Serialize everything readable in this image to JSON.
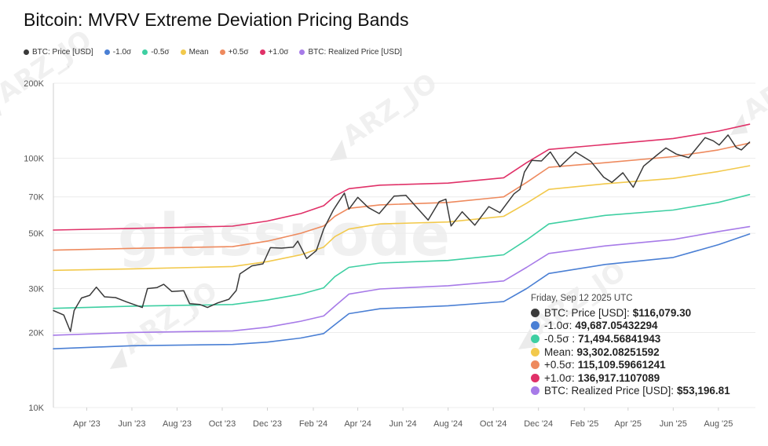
{
  "chart_data": {
    "type": "line",
    "title": "Bitcoin: MVRV Extreme Deviation Pricing Bands",
    "y_scale": "log",
    "ylim": [
      10000,
      200000
    ],
    "y_ticks": [
      {
        "value": 10000,
        "label": "10K"
      },
      {
        "value": 20000,
        "label": "20K"
      },
      {
        "value": 30000,
        "label": "30K"
      },
      {
        "value": 50000,
        "label": "50K"
      },
      {
        "value": 70000,
        "label": "70K"
      },
      {
        "value": 100000,
        "label": "100K"
      },
      {
        "value": 200000,
        "label": "200K"
      }
    ],
    "xlim": [
      "2023-02-15",
      "2025-09-20"
    ],
    "x_ticks": [
      {
        "value": "2023-04-01",
        "label": "Apr '23"
      },
      {
        "value": "2023-06-01",
        "label": "Jun '23"
      },
      {
        "value": "2023-08-01",
        "label": "Aug '23"
      },
      {
        "value": "2023-10-01",
        "label": "Oct '23"
      },
      {
        "value": "2023-12-01",
        "label": "Dec '23"
      },
      {
        "value": "2024-02-01",
        "label": "Feb '24"
      },
      {
        "value": "2024-04-01",
        "label": "Apr '24"
      },
      {
        "value": "2024-06-01",
        "label": "Jun '24"
      },
      {
        "value": "2024-08-01",
        "label": "Aug '24"
      },
      {
        "value": "2024-10-01",
        "label": "Oct '24"
      },
      {
        "value": "2024-12-01",
        "label": "Dec '24"
      },
      {
        "value": "2025-02-01",
        "label": "Feb '25"
      },
      {
        "value": "2025-04-01",
        "label": "Apr '25"
      },
      {
        "value": "2025-06-01",
        "label": "Jun '25"
      },
      {
        "value": "2025-08-01",
        "label": "Aug '25"
      }
    ],
    "grid": true,
    "legend_position": "top-left",
    "series": [
      {
        "name": "BTC: Price [USD]",
        "color": "#3a3a3a",
        "points": [
          [
            "2023-02-15",
            24500
          ],
          [
            "2023-03-01",
            23500
          ],
          [
            "2023-03-10",
            20200
          ],
          [
            "2023-03-15",
            24500
          ],
          [
            "2023-03-25",
            27500
          ],
          [
            "2023-04-05",
            28200
          ],
          [
            "2023-04-14",
            30400
          ],
          [
            "2023-04-25",
            27800
          ],
          [
            "2023-05-10",
            27600
          ],
          [
            "2023-05-25",
            26500
          ],
          [
            "2023-06-15",
            25200
          ],
          [
            "2023-06-22",
            30000
          ],
          [
            "2023-07-05",
            30300
          ],
          [
            "2023-07-14",
            31200
          ],
          [
            "2023-07-25",
            29200
          ],
          [
            "2023-08-10",
            29400
          ],
          [
            "2023-08-18",
            26100
          ],
          [
            "2023-09-01",
            25900
          ],
          [
            "2023-09-11",
            25200
          ],
          [
            "2023-09-25",
            26300
          ],
          [
            "2023-10-10",
            27200
          ],
          [
            "2023-10-20",
            29500
          ],
          [
            "2023-10-25",
            34400
          ],
          [
            "2023-11-10",
            37000
          ],
          [
            "2023-11-25",
            37700
          ],
          [
            "2023-12-05",
            43800
          ],
          [
            "2023-12-20",
            43600
          ],
          [
            "2024-01-05",
            44000
          ],
          [
            "2024-01-11",
            46500
          ],
          [
            "2024-01-23",
            39600
          ],
          [
            "2024-02-05",
            42600
          ],
          [
            "2024-02-15",
            52000
          ],
          [
            "2024-02-28",
            62000
          ],
          [
            "2024-03-05",
            66000
          ],
          [
            "2024-03-14",
            72500
          ],
          [
            "2024-03-20",
            62500
          ],
          [
            "2024-04-01",
            69700
          ],
          [
            "2024-04-15",
            63500
          ],
          [
            "2024-04-30",
            60000
          ],
          [
            "2024-05-20",
            70500
          ],
          [
            "2024-06-05",
            71000
          ],
          [
            "2024-06-25",
            61000
          ],
          [
            "2024-07-05",
            56500
          ],
          [
            "2024-07-20",
            67000
          ],
          [
            "2024-07-29",
            68500
          ],
          [
            "2024-08-05",
            53500
          ],
          [
            "2024-08-20",
            61000
          ],
          [
            "2024-09-06",
            53900
          ],
          [
            "2024-09-25",
            64000
          ],
          [
            "2024-10-10",
            60500
          ],
          [
            "2024-10-29",
            72000
          ],
          [
            "2024-11-06",
            75000
          ],
          [
            "2024-11-12",
            88000
          ],
          [
            "2024-11-22",
            98000
          ],
          [
            "2024-12-05",
            97500
          ],
          [
            "2024-12-17",
            106000
          ],
          [
            "2024-12-30",
            92500
          ],
          [
            "2025-01-20",
            106000
          ],
          [
            "2025-02-10",
            97000
          ],
          [
            "2025-02-27",
            84000
          ],
          [
            "2025-03-10",
            80000
          ],
          [
            "2025-03-25",
            87500
          ],
          [
            "2025-04-08",
            76500
          ],
          [
            "2025-04-22",
            93000
          ],
          [
            "2025-05-10",
            103000
          ],
          [
            "2025-05-22",
            110000
          ],
          [
            "2025-06-05",
            104000
          ],
          [
            "2025-06-22",
            100500
          ],
          [
            "2025-07-14",
            121000
          ],
          [
            "2025-07-25",
            117500
          ],
          [
            "2025-08-02",
            113000
          ],
          [
            "2025-08-14",
            124000
          ],
          [
            "2025-08-25",
            110500
          ],
          [
            "2025-09-01",
            108000
          ],
          [
            "2025-09-12",
            116079.3
          ]
        ]
      },
      {
        "name": "-1.0σ",
        "color": "#4a7fd4",
        "points": [
          [
            "2023-02-15",
            17200
          ],
          [
            "2023-06-01",
            17700
          ],
          [
            "2023-10-15",
            17900
          ],
          [
            "2023-12-01",
            18300
          ],
          [
            "2024-01-15",
            19000
          ],
          [
            "2024-02-15",
            19800
          ],
          [
            "2024-03-01",
            21500
          ],
          [
            "2024-03-20",
            23800
          ],
          [
            "2024-05-01",
            24900
          ],
          [
            "2024-08-01",
            25600
          ],
          [
            "2024-10-15",
            26600
          ],
          [
            "2024-11-15",
            30000
          ],
          [
            "2024-12-15",
            34500
          ],
          [
            "2025-03-01",
            37500
          ],
          [
            "2025-06-01",
            40000
          ],
          [
            "2025-08-01",
            45000
          ],
          [
            "2025-09-12",
            49687.05432294
          ]
        ]
      },
      {
        "name": "-0.5σ",
        "color": "#3ecfa2",
        "points": [
          [
            "2023-02-15",
            25000
          ],
          [
            "2023-06-01",
            25500
          ],
          [
            "2023-10-15",
            25900
          ],
          [
            "2023-12-01",
            27000
          ],
          [
            "2024-01-15",
            28500
          ],
          [
            "2024-02-15",
            30200
          ],
          [
            "2024-03-01",
            33500
          ],
          [
            "2024-03-20",
            36500
          ],
          [
            "2024-05-01",
            38000
          ],
          [
            "2024-08-01",
            38900
          ],
          [
            "2024-10-15",
            41000
          ],
          [
            "2024-11-15",
            47000
          ],
          [
            "2024-12-15",
            54500
          ],
          [
            "2025-03-01",
            59000
          ],
          [
            "2025-06-01",
            62000
          ],
          [
            "2025-08-01",
            66500
          ],
          [
            "2025-09-12",
            71494.56841943
          ]
        ]
      },
      {
        "name": "Mean",
        "color": "#f2c94c",
        "points": [
          [
            "2023-02-15",
            35500
          ],
          [
            "2023-06-01",
            36000
          ],
          [
            "2023-10-15",
            36800
          ],
          [
            "2023-12-01",
            38500
          ],
          [
            "2024-01-15",
            41000
          ],
          [
            "2024-02-15",
            44000
          ],
          [
            "2024-03-01",
            48500
          ],
          [
            "2024-03-20",
            52000
          ],
          [
            "2024-05-01",
            54500
          ],
          [
            "2024-08-01",
            55500
          ],
          [
            "2024-10-15",
            58500
          ],
          [
            "2024-11-15",
            66000
          ],
          [
            "2024-12-15",
            75000
          ],
          [
            "2025-03-01",
            79000
          ],
          [
            "2025-06-01",
            83000
          ],
          [
            "2025-08-01",
            88500
          ],
          [
            "2025-09-12",
            93302.08251592
          ]
        ]
      },
      {
        "name": "+0.5σ",
        "color": "#ee8a5e",
        "points": [
          [
            "2023-02-15",
            42800
          ],
          [
            "2023-06-01",
            43500
          ],
          [
            "2023-10-15",
            44200
          ],
          [
            "2023-12-01",
            46500
          ],
          [
            "2024-01-15",
            50000
          ],
          [
            "2024-02-15",
            53500
          ],
          [
            "2024-03-01",
            58500
          ],
          [
            "2024-03-20",
            63000
          ],
          [
            "2024-05-01",
            65000
          ],
          [
            "2024-08-01",
            66500
          ],
          [
            "2024-10-15",
            70000
          ],
          [
            "2024-11-15",
            80000
          ],
          [
            "2024-12-15",
            92000
          ],
          [
            "2025-03-01",
            96000
          ],
          [
            "2025-06-01",
            101500
          ],
          [
            "2025-08-01",
            108000
          ],
          [
            "2025-09-12",
            115109.59661241
          ]
        ]
      },
      {
        "name": "+1.0σ",
        "color": "#e03168",
        "points": [
          [
            "2023-02-15",
            51500
          ],
          [
            "2023-06-01",
            52300
          ],
          [
            "2023-10-15",
            53400
          ],
          [
            "2023-12-01",
            56000
          ],
          [
            "2024-01-15",
            60000
          ],
          [
            "2024-02-15",
            64500
          ],
          [
            "2024-03-01",
            70500
          ],
          [
            "2024-03-20",
            75500
          ],
          [
            "2024-05-01",
            78000
          ],
          [
            "2024-08-01",
            79500
          ],
          [
            "2024-10-15",
            83500
          ],
          [
            "2024-11-15",
            96000
          ],
          [
            "2024-12-15",
            108500
          ],
          [
            "2025-03-01",
            113500
          ],
          [
            "2025-06-01",
            120000
          ],
          [
            "2025-08-01",
            128500
          ],
          [
            "2025-09-12",
            136917.1107089
          ]
        ]
      },
      {
        "name": "BTC: Realized Price [USD]",
        "color": "#a77be8",
        "points": [
          [
            "2023-02-15",
            19500
          ],
          [
            "2023-06-01",
            20000
          ],
          [
            "2023-10-15",
            20300
          ],
          [
            "2023-12-01",
            21000
          ],
          [
            "2024-01-15",
            22200
          ],
          [
            "2024-02-15",
            23300
          ],
          [
            "2024-03-01",
            25500
          ],
          [
            "2024-03-20",
            28500
          ],
          [
            "2024-05-01",
            29900
          ],
          [
            "2024-08-01",
            30800
          ],
          [
            "2024-10-15",
            32200
          ],
          [
            "2024-11-15",
            36500
          ],
          [
            "2024-12-15",
            41500
          ],
          [
            "2025-03-01",
            44500
          ],
          [
            "2025-06-01",
            47200
          ],
          [
            "2025-08-01",
            50800
          ],
          [
            "2025-09-12",
            53196.81
          ]
        ]
      }
    ],
    "tooltip": {
      "date": "Friday, Sep 12 2025 UTC",
      "rows": [
        {
          "label": "BTC: Price [USD]:",
          "value": "$116,079.30",
          "color": "#3a3a3a"
        },
        {
          "label": "-1.0σ:",
          "value": "49,687.05432294",
          "color": "#4a7fd4"
        },
        {
          "label": "-0.5σ :",
          "value": "71,494.56841943",
          "color": "#3ecfa2"
        },
        {
          "label": "Mean:",
          "value": "93,302.08251592",
          "color": "#f2c94c"
        },
        {
          "label": "+0.5σ:",
          "value": "115,109.59661241",
          "color": "#ee8a5e"
        },
        {
          "label": "+1.0σ:",
          "value": "136,917.1107089",
          "color": "#e03168"
        },
        {
          "label": "BTC: Realized Price [USD]:",
          "value": "$53,196.81",
          "color": "#a77be8"
        }
      ]
    }
  },
  "watermarks": {
    "brand": "glassnode",
    "handle": "ARZ_JO"
  }
}
